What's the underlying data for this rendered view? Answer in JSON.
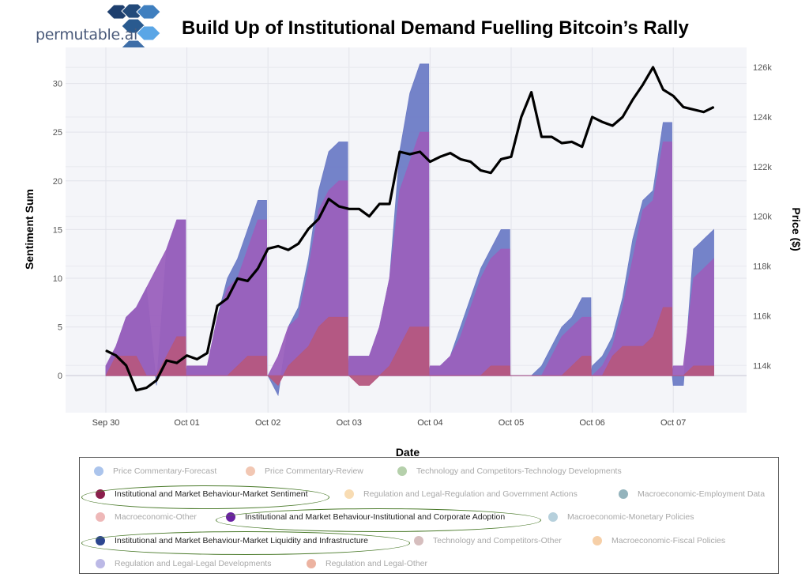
{
  "header": {
    "title": "Build Up of Institutional Demand Fuelling Bitcoin’s Rally",
    "logo_text": "permutable.ai"
  },
  "chart_data": {
    "type": "area",
    "title": "Build Up of Institutional Demand Fuelling Bitcoin’s Rally",
    "xlabel": "Date",
    "ylabel": "Sentiment Sum",
    "y2label": "Price ($)",
    "x_ticks": [
      "Sep 30",
      "Oct 01",
      "Oct 02",
      "Oct 03",
      "Oct 04",
      "Oct 05",
      "Oct 06",
      "Oct 07"
    ],
    "y_ticks": [
      "0",
      "5",
      "10",
      "15",
      "20",
      "25",
      "30"
    ],
    "y2_ticks": [
      "114k",
      "116k",
      "118k",
      "120k",
      "122k",
      "124k",
      "126k"
    ],
    "ylim": [
      -3.8,
      33.7
    ],
    "y2lim": [
      112.1,
      126.8
    ],
    "grid": true,
    "legend": "bottom",
    "x": [
      "09-30 00:00",
      "09-30 03:00",
      "09-30 06:00",
      "09-30 09:00",
      "09-30 12:00",
      "09-30 15:00",
      "09-30 18:00",
      "09-30 21:00",
      "10-01 00:00",
      "10-01 03:00",
      "10-01 06:00",
      "10-01 09:00",
      "10-01 12:00",
      "10-01 15:00",
      "10-01 18:00",
      "10-01 21:00",
      "10-02 00:00",
      "10-02 03:00",
      "10-02 06:00",
      "10-02 09:00",
      "10-02 12:00",
      "10-02 15:00",
      "10-02 18:00",
      "10-02 21:00",
      "10-03 00:00",
      "10-03 03:00",
      "10-03 06:00",
      "10-03 09:00",
      "10-03 12:00",
      "10-03 15:00",
      "10-03 18:00",
      "10-03 21:00",
      "10-04 00:00",
      "10-04 03:00",
      "10-04 06:00",
      "10-04 09:00",
      "10-04 12:00",
      "10-04 15:00",
      "10-04 18:00",
      "10-04 21:00",
      "10-05 00:00",
      "10-05 03:00",
      "10-05 06:00",
      "10-05 09:00",
      "10-05 12:00",
      "10-05 15:00",
      "10-05 18:00",
      "10-05 21:00",
      "10-06 00:00",
      "10-06 03:00",
      "10-06 06:00",
      "10-06 09:00",
      "10-06 12:00",
      "10-06 15:00",
      "10-06 18:00",
      "10-06 21:00",
      "10-07 00:00",
      "10-07 03:00",
      "10-07 06:00",
      "10-07 09:00",
      "10-07 12:00"
    ],
    "series": [
      {
        "name": "Institutional and Market Behaviour-Market Liquidity and Infrastructure",
        "color": "#6d7cc6",
        "values": [
          1,
          3,
          6,
          7,
          9,
          -1,
          13,
          16,
          1,
          1,
          1,
          6,
          10,
          12,
          15,
          18,
          0,
          -2,
          5,
          7,
          12,
          19,
          23,
          24,
          2,
          2,
          2,
          5,
          10,
          23,
          29,
          32,
          1,
          1,
          2,
          5,
          8,
          11,
          13,
          15,
          0,
          0,
          0,
          1,
          3,
          5,
          6,
          8,
          1,
          2,
          4,
          8,
          14,
          18,
          19,
          26,
          -1,
          -1,
          13,
          14,
          15
        ]
      },
      {
        "name": "Institutional and Market Behaviour-Institutional and Corporate Adoption",
        "color": "#9a60bd",
        "values": [
          1,
          3,
          6,
          7,
          9,
          11,
          13,
          16,
          1,
          1,
          1,
          6,
          9,
          10,
          13,
          16,
          0,
          2,
          5,
          6,
          11,
          17,
          19,
          20,
          2,
          2,
          2,
          5,
          10,
          19,
          22,
          25,
          1,
          1,
          2,
          4,
          7,
          10,
          12,
          13,
          0,
          0,
          0,
          0,
          2,
          4,
          5,
          6,
          0,
          1,
          3,
          7,
          12,
          17,
          18,
          24,
          1,
          1,
          10,
          11,
          12
        ]
      },
      {
        "name": "Institutional and Market Behaviour-Market Sentiment",
        "color": "#b5577f",
        "values": [
          0,
          2,
          2,
          2,
          0,
          0,
          2,
          4,
          0,
          0,
          0,
          0,
          0,
          1,
          2,
          2,
          0,
          -1,
          1,
          2,
          3,
          5,
          6,
          6,
          0,
          -1,
          -1,
          0,
          1,
          3,
          5,
          5,
          0,
          0,
          0,
          0,
          0,
          0,
          1,
          1,
          0,
          0,
          0,
          0,
          0,
          0,
          1,
          2,
          0,
          0,
          2,
          3,
          3,
          3,
          4,
          7,
          0,
          0,
          1,
          1,
          1
        ]
      },
      {
        "name": "Price ($)",
        "axis": "y2",
        "color": "#000000",
        "unit": "k",
        "values": [
          114.6,
          114.4,
          114.0,
          113.0,
          113.1,
          113.4,
          114.2,
          114.1,
          114.4,
          114.25,
          114.5,
          116.4,
          116.7,
          117.5,
          117.4,
          117.9,
          118.7,
          118.8,
          118.65,
          118.9,
          119.5,
          119.9,
          120.7,
          120.4,
          120.3,
          120.3,
          120.0,
          120.5,
          120.5,
          122.6,
          122.5,
          122.6,
          122.2,
          122.4,
          122.55,
          122.3,
          122.2,
          121.85,
          121.75,
          122.3,
          122.4,
          124.0,
          125.0,
          123.2,
          123.2,
          122.95,
          123.0,
          122.8,
          124.0,
          123.8,
          123.65,
          124.0,
          124.7,
          125.3,
          126.0,
          125.1,
          124.85,
          124.4,
          124.3,
          124.2,
          124.4
        ]
      }
    ]
  },
  "legend": {
    "items": [
      {
        "label": "Price Commentary-Forecast",
        "color": "#8fb0e6",
        "highlighted": false
      },
      {
        "label": "Price Commentary-Review",
        "color": "#eeb49a",
        "highlighted": false
      },
      {
        "label": "Technology and Competitors-Technology Developments",
        "color": "#9cc08f",
        "highlighted": false
      },
      {
        "label": "Institutional and Market Behaviour-Market Sentiment",
        "color": "#8b1f4c",
        "highlighted": true
      },
      {
        "label": "Regulation and Legal-Regulation and Government Actions",
        "color": "#f5d09a",
        "highlighted": false
      },
      {
        "label": "Macroeconomic-Employment Data",
        "color": "#6f9aa6",
        "highlighted": false
      },
      {
        "label": "Macroeconomic-Other",
        "color": "#e8a0a0",
        "highlighted": false
      },
      {
        "label": "Institutional and Market Behaviour-Institutional and Corporate Adoption",
        "color": "#6a22a2",
        "highlighted": true
      },
      {
        "label": "Macroeconomic-Monetary Policies",
        "color": "#9ec0d0",
        "highlighted": false
      },
      {
        "label": "Institutional and Market Behaviour-Market Liquidity and Infrastructure",
        "color": "#2c4590",
        "highlighted": true
      },
      {
        "label": "Technology and Competitors-Other",
        "color": "#c8a8a8",
        "highlighted": false
      },
      {
        "label": "Macroeconomic-Fiscal Policies",
        "color": "#f3bf8a",
        "highlighted": false
      },
      {
        "label": "Regulation and Legal-Legal Developments",
        "color": "#a6a2de",
        "highlighted": false
      },
      {
        "label": "Regulation and Legal-Other",
        "color": "#e59a82",
        "highlighted": false
      }
    ]
  }
}
